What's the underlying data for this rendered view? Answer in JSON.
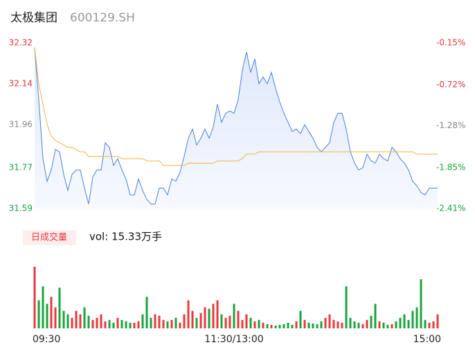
{
  "chart_data": {
    "type": "intraday",
    "title": "太极集团",
    "subtitle": "600129.SH",
    "categories": [
      "09:30",
      null,
      null,
      null,
      null,
      null,
      null,
      null,
      null,
      null,
      null,
      null,
      null,
      null,
      null,
      null,
      null,
      null,
      null,
      null,
      null,
      null,
      null,
      null,
      null,
      null,
      null,
      null,
      null,
      null,
      null,
      null,
      null,
      null,
      null,
      null,
      null,
      null,
      null,
      null,
      null,
      null,
      null,
      null,
      null,
      null,
      null,
      null,
      "11:30/13:00",
      null,
      null,
      null,
      null,
      null,
      null,
      null,
      null,
      null,
      null,
      null,
      null,
      null,
      null,
      null,
      null,
      null,
      null,
      null,
      null,
      null,
      null,
      null,
      null,
      null,
      null,
      null,
      null,
      null,
      null,
      null,
      null,
      null,
      null,
      null,
      null,
      null,
      null,
      null,
      null,
      null,
      null,
      null,
      null,
      null,
      null,
      null,
      null,
      "15:00"
    ],
    "series": [
      {
        "name": "price",
        "color": "#4a7fe0",
        "values": [
          32.3,
          32.07,
          31.81,
          31.71,
          31.76,
          31.85,
          31.84,
          31.74,
          31.67,
          31.74,
          31.76,
          31.76,
          31.68,
          31.61,
          31.73,
          31.76,
          31.76,
          31.88,
          31.86,
          31.78,
          31.81,
          31.76,
          31.72,
          31.65,
          31.65,
          31.72,
          31.67,
          31.63,
          31.61,
          31.61,
          31.68,
          31.68,
          31.65,
          31.72,
          31.71,
          31.75,
          31.82,
          31.9,
          31.94,
          31.87,
          31.9,
          31.94,
          31.9,
          31.95,
          32.05,
          31.97,
          32.01,
          32.02,
          32.01,
          32.07,
          32.2,
          32.28,
          32.19,
          32.25,
          32.14,
          32.17,
          32.14,
          32.19,
          32.12,
          32.06,
          32.01,
          31.97,
          31.93,
          31.94,
          31.92,
          31.96,
          31.93,
          31.9,
          31.86,
          31.84,
          31.86,
          31.88,
          31.97,
          32.01,
          32.01,
          31.94,
          31.84,
          31.79,
          31.76,
          31.77,
          31.83,
          31.8,
          31.79,
          31.83,
          31.81,
          31.8,
          31.86,
          31.84,
          31.81,
          31.79,
          31.76,
          31.71,
          31.69,
          31.66,
          31.65,
          31.68,
          31.68,
          31.68
        ]
      },
      {
        "name": "average",
        "color": "#f2b33d",
        "values": [
          32.3,
          32.14,
          32.05,
          31.96,
          31.91,
          31.89,
          31.88,
          31.87,
          31.86,
          31.86,
          31.85,
          31.84,
          31.84,
          31.82,
          31.82,
          31.82,
          31.82,
          31.82,
          31.82,
          31.82,
          31.82,
          31.81,
          31.81,
          31.81,
          31.81,
          31.81,
          31.81,
          31.8,
          31.8,
          31.8,
          31.8,
          31.78,
          31.78,
          31.78,
          31.78,
          31.78,
          31.78,
          31.79,
          31.79,
          31.79,
          31.79,
          31.79,
          31.79,
          31.79,
          31.8,
          31.8,
          31.8,
          31.8,
          31.8,
          31.8,
          31.81,
          31.83,
          31.83,
          31.83,
          31.84,
          31.84,
          31.84,
          31.84,
          31.84,
          31.84,
          31.84,
          31.84,
          31.84,
          31.84,
          31.84,
          31.84,
          31.84,
          31.84,
          31.84,
          31.84,
          31.84,
          31.84,
          31.84,
          31.84,
          31.84,
          31.84,
          31.84,
          31.84,
          31.84,
          31.84,
          31.84,
          31.84,
          31.84,
          31.84,
          31.84,
          31.84,
          31.84,
          31.84,
          31.84,
          31.84,
          31.84,
          31.84,
          31.83,
          31.83,
          31.83,
          31.83,
          31.83,
          31.83
        ]
      }
    ],
    "volume": {
      "up_color": "#e8383d",
      "down_color": "#1aa33c",
      "values": [
        88,
        40,
        60,
        35,
        45,
        30,
        58,
        25,
        20,
        15,
        25,
        20,
        30,
        18,
        12,
        15,
        20,
        10,
        12,
        8,
        15,
        12,
        10,
        8,
        8,
        10,
        20,
        45,
        15,
        20,
        18,
        12,
        10,
        12,
        15,
        8,
        20,
        40,
        25,
        15,
        22,
        30,
        28,
        35,
        40,
        20,
        15,
        18,
        35,
        25,
        12,
        20,
        15,
        10,
        12,
        8,
        6,
        5,
        4,
        5,
        6,
        8,
        5,
        10,
        25,
        12,
        8,
        7,
        6,
        10,
        15,
        20,
        12,
        10,
        8,
        60,
        15,
        10,
        8,
        6,
        12,
        18,
        35,
        10,
        8,
        5,
        6,
        10,
        15,
        20,
        12,
        25,
        30,
        70,
        12,
        8,
        10,
        20
      ]
    },
    "volume_label": "日成交量",
    "volume_text": "vol: 15.33万手",
    "ylim": [
      31.59,
      32.32
    ],
    "yticks": [
      32.32,
      32.14,
      31.96,
      31.77,
      31.59
    ],
    "y2lim": [
      -2.41,
      -0.15
    ],
    "y2ticks": [
      {
        "value": -0.15,
        "label": "-0.15%"
      },
      {
        "value": -0.72,
        "label": "-0.72%"
      },
      {
        "value": -1.28,
        "label": "-1.28%"
      },
      {
        "value": -1.85,
        "label": "-1.85%"
      },
      {
        "value": -2.41,
        "label": "-2.41%"
      }
    ],
    "tick_colors": [
      "#e8383d",
      "#e8383d",
      "#888888",
      "#1aa33c",
      "#1aa33c"
    ]
  }
}
